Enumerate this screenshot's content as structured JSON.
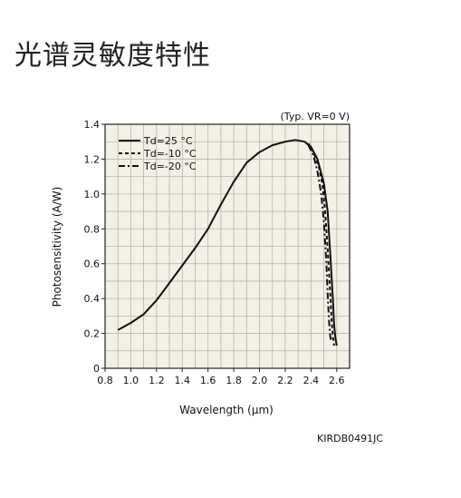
{
  "page": {
    "title": "光谱灵敏度特性",
    "figure_code": "KIRDB0491JC"
  },
  "chart_data": {
    "type": "line",
    "xlabel": "Wavelength (μm)",
    "ylabel": "Photosensitivity (A/W)",
    "annotation": "(Typ. VR=0 V)",
    "xlim": [
      0.8,
      2.7
    ],
    "ylim": [
      0,
      1.4
    ],
    "xticks": [
      0.8,
      1.0,
      1.2,
      1.4,
      1.6,
      1.8,
      2.0,
      2.2,
      2.4,
      2.6
    ],
    "yticks": [
      0,
      0.2,
      0.4,
      0.6,
      0.8,
      1.0,
      1.2,
      1.4
    ],
    "xtick_labels": [
      "0.8",
      "1.0",
      "1.2",
      "1.4",
      "1.6",
      "1.8",
      "2.0",
      "2.2",
      "2.4",
      "2.6"
    ],
    "ytick_labels": [
      "0",
      "0.2",
      "0.4",
      "0.6",
      "0.8",
      "1.0",
      "1.2",
      "1.4"
    ],
    "grid": true,
    "legend_position": "top-left",
    "series": [
      {
        "name": "Td=25 °C",
        "style": "solid",
        "x": [
          0.9,
          1.0,
          1.1,
          1.2,
          1.3,
          1.4,
          1.5,
          1.6,
          1.7,
          1.8,
          1.9,
          2.0,
          2.1,
          2.2,
          2.28,
          2.35,
          2.4,
          2.45,
          2.5,
          2.53,
          2.55,
          2.57,
          2.58,
          2.59,
          2.6
        ],
        "y": [
          0.22,
          0.26,
          0.31,
          0.39,
          0.49,
          0.59,
          0.69,
          0.8,
          0.94,
          1.07,
          1.18,
          1.24,
          1.28,
          1.3,
          1.31,
          1.3,
          1.27,
          1.2,
          1.06,
          0.9,
          0.65,
          0.4,
          0.25,
          0.17,
          0.13
        ]
      },
      {
        "name": "Td=-10 °C",
        "style": "dashed",
        "x": [
          2.38,
          2.42,
          2.46,
          2.49,
          2.51,
          2.53,
          2.55,
          2.56,
          2.57,
          2.58
        ],
        "y": [
          1.29,
          1.24,
          1.16,
          1.05,
          0.9,
          0.68,
          0.42,
          0.28,
          0.18,
          0.13
        ]
      },
      {
        "name": "Td=-20 °C",
        "style": "dashdot",
        "x": [
          2.38,
          2.42,
          2.45,
          2.48,
          2.5,
          2.52,
          2.53,
          2.54,
          2.55,
          2.56
        ],
        "y": [
          1.28,
          1.22,
          1.13,
          1.0,
          0.84,
          0.6,
          0.42,
          0.27,
          0.18,
          0.15
        ]
      }
    ]
  }
}
